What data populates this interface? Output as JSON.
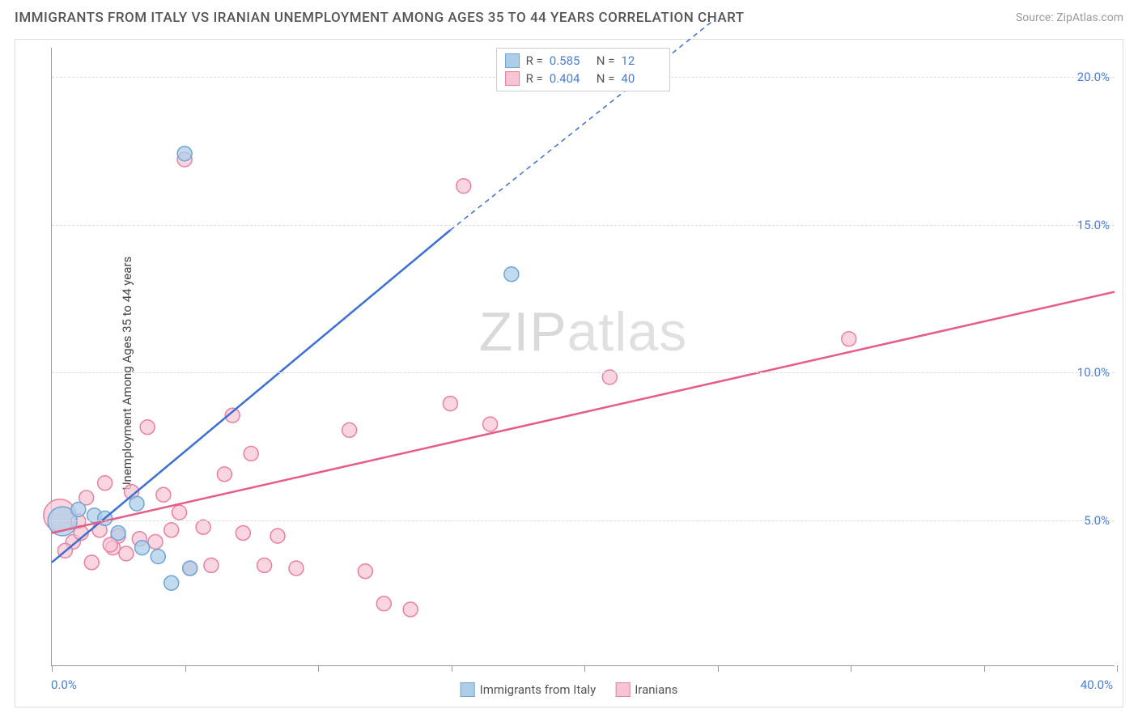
{
  "title": "IMMIGRANTS FROM ITALY VS IRANIAN UNEMPLOYMENT AMONG AGES 35 TO 44 YEARS CORRELATION CHART",
  "source": "Source: ZipAtlas.com",
  "ylabel": "Unemployment Among Ages 35 to 44 years",
  "watermark_bold": "ZIP",
  "watermark_thin": "atlas",
  "chart": {
    "type": "scatter-with-regression",
    "xlim": [
      0,
      40
    ],
    "ylim": [
      0,
      21
    ],
    "xtick_positions": [
      0,
      5,
      10,
      15,
      20,
      25,
      30,
      35,
      40
    ],
    "xtick_labels_shown": {
      "0": "0.0%",
      "40": "40.0%"
    },
    "ytick_positions": [
      5,
      10,
      15,
      20
    ],
    "ytick_labels": [
      "5.0%",
      "10.0%",
      "15.0%",
      "20.0%"
    ],
    "grid_color": "#dddddd",
    "axis_color": "#999999",
    "background_color": "#ffffff",
    "tick_label_color": "#4a7dd6",
    "ylabel_color": "#444444",
    "title_color": "#555555",
    "series": [
      {
        "name": "Immigrants from Italy",
        "color_fill": "#aecde8",
        "color_stroke": "#6fa4d3",
        "line_color": "#3b6fd1",
        "r": 0.585,
        "n": 12,
        "marker_radius": 9,
        "marker_opacity": 0.75,
        "line_width": 2.5,
        "regression": {
          "x1": 0,
          "y1": 3.5,
          "x2": 15,
          "y2": 14.8,
          "x2_dash": 25,
          "y2_dash": 22
        },
        "points": [
          {
            "x": 0.4,
            "y": 4.9,
            "r": 18
          },
          {
            "x": 1.6,
            "y": 5.1
          },
          {
            "x": 2.0,
            "y": 5.0
          },
          {
            "x": 3.2,
            "y": 5.5
          },
          {
            "x": 3.4,
            "y": 4.0
          },
          {
            "x": 4.0,
            "y": 3.7
          },
          {
            "x": 4.5,
            "y": 2.8
          },
          {
            "x": 5.0,
            "y": 17.4
          },
          {
            "x": 5.2,
            "y": 3.3
          },
          {
            "x": 17.3,
            "y": 13.3
          },
          {
            "x": 2.5,
            "y": 4.5
          },
          {
            "x": 1.0,
            "y": 5.3
          }
        ]
      },
      {
        "name": "Iranians",
        "color_fill": "#f6c4d2",
        "color_stroke": "#e97fa1",
        "line_color": "#e85b86",
        "r": 0.404,
        "n": 40,
        "marker_radius": 9,
        "marker_opacity": 0.7,
        "line_width": 2.5,
        "regression": {
          "x1": 0,
          "y1": 4.5,
          "x2": 40,
          "y2": 12.7
        },
        "points": [
          {
            "x": 0.3,
            "y": 5.1,
            "r": 20
          },
          {
            "x": 0.8,
            "y": 4.2
          },
          {
            "x": 1.0,
            "y": 4.9
          },
          {
            "x": 1.3,
            "y": 5.7
          },
          {
            "x": 1.5,
            "y": 3.5
          },
          {
            "x": 1.8,
            "y": 4.6
          },
          {
            "x": 2.0,
            "y": 6.2
          },
          {
            "x": 2.3,
            "y": 4.0
          },
          {
            "x": 2.5,
            "y": 4.4
          },
          {
            "x": 2.8,
            "y": 3.8
          },
          {
            "x": 3.0,
            "y": 5.9
          },
          {
            "x": 3.3,
            "y": 4.3
          },
          {
            "x": 3.6,
            "y": 8.1
          },
          {
            "x": 4.2,
            "y": 5.8
          },
          {
            "x": 4.5,
            "y": 4.6
          },
          {
            "x": 5.0,
            "y": 17.2
          },
          {
            "x": 5.2,
            "y": 3.3
          },
          {
            "x": 5.7,
            "y": 4.7
          },
          {
            "x": 6.0,
            "y": 3.4
          },
          {
            "x": 6.5,
            "y": 6.5
          },
          {
            "x": 6.8,
            "y": 8.5
          },
          {
            "x": 7.2,
            "y": 4.5
          },
          {
            "x": 7.5,
            "y": 7.2
          },
          {
            "x": 8.0,
            "y": 3.4
          },
          {
            "x": 8.5,
            "y": 4.4
          },
          {
            "x": 9.2,
            "y": 3.3
          },
          {
            "x": 11.2,
            "y": 8.0
          },
          {
            "x": 11.8,
            "y": 3.2
          },
          {
            "x": 12.5,
            "y": 2.1
          },
          {
            "x": 13.5,
            "y": 1.9
          },
          {
            "x": 15.0,
            "y": 8.9
          },
          {
            "x": 15.5,
            "y": 16.3
          },
          {
            "x": 16.5,
            "y": 8.2
          },
          {
            "x": 21.0,
            "y": 9.8
          },
          {
            "x": 30.0,
            "y": 11.1
          },
          {
            "x": 2.2,
            "y": 4.1
          },
          {
            "x": 3.9,
            "y": 4.2
          },
          {
            "x": 1.1,
            "y": 4.5
          },
          {
            "x": 0.5,
            "y": 3.9
          },
          {
            "x": 4.8,
            "y": 5.2
          }
        ]
      }
    ],
    "legend_top_labels": {
      "r_label": "R =",
      "n_label": "N ="
    },
    "legend_bottom": [
      {
        "label": "Immigrants from Italy",
        "fill": "#aecde8",
        "stroke": "#6fa4d3"
      },
      {
        "label": "Iranians",
        "fill": "#f6c4d2",
        "stroke": "#e97fa1"
      }
    ]
  }
}
